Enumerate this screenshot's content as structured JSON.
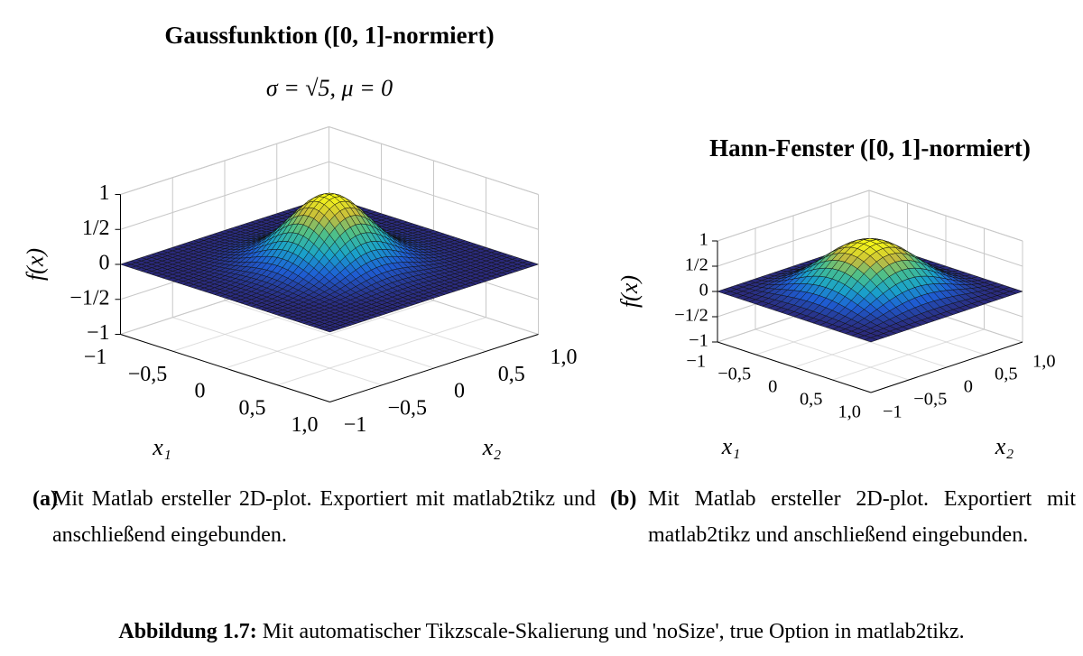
{
  "figure": {
    "subfigures": [
      {
        "title": "Gaussfunktion ([0, 1]-normiert)",
        "subtitle": "σ = √5, μ = 0",
        "zlabel": "f(x)",
        "xlabel": "x₁",
        "ylabel": "x₂",
        "zticks": [
          {
            "value": -1,
            "label": "−1"
          },
          {
            "value": -0.5,
            "label": "−1/2"
          },
          0,
          {
            "value": 0.5,
            "label": "1/2"
          },
          1
        ],
        "xticks": [
          {
            "value": -1,
            "label": "−1"
          },
          {
            "value": -0.5,
            "label": "−0,5"
          },
          0,
          {
            "value": 0.5,
            "label": "0,5"
          },
          {
            "value": 1,
            "label": "1,0"
          }
        ],
        "yticks": [
          {
            "value": -1,
            "label": "−1"
          },
          {
            "value": -0.5,
            "label": "−0,5"
          },
          0,
          {
            "value": 0.5,
            "label": "0,5"
          },
          {
            "value": 1,
            "label": "1,0"
          }
        ],
        "label": "(a)",
        "caption": "Mit Matlab ersteller 2D-plot. Exportiert mit matlab2tikz und anschließend eingebunden."
      },
      {
        "title": "Hann-Fenster ([0, 1]-normiert)",
        "zlabel": "f(x)",
        "xlabel": "x₁",
        "ylabel": "x₂",
        "zticks": [
          {
            "value": -1,
            "label": "−1"
          },
          {
            "value": -0.5,
            "label": "−1/2"
          },
          0,
          {
            "value": 0.5,
            "label": "1/2"
          },
          1
        ],
        "xticks": [
          {
            "value": -1,
            "label": "−1"
          },
          {
            "value": -0.5,
            "label": "−0,5"
          },
          0,
          {
            "value": 0.5,
            "label": "0,5"
          },
          {
            "value": 1,
            "label": "1,0"
          }
        ],
        "yticks": [
          {
            "value": -1,
            "label": "−1"
          },
          {
            "value": -0.5,
            "label": "−0,5"
          },
          0,
          {
            "value": 0.5,
            "label": "0,5"
          },
          {
            "value": 1,
            "label": "1,0"
          }
        ],
        "label": "(b)",
        "caption": "Mit Matlab ersteller 2D-plot. Exportiert mit matlab2tikz und anschließend eingebunden."
      }
    ],
    "caption": {
      "label": "Abbildung 1.7:",
      "text": "Mit automatischer Tikzscale-Skalierung und 'noSize', true Option in matlab2tikz."
    }
  }
}
